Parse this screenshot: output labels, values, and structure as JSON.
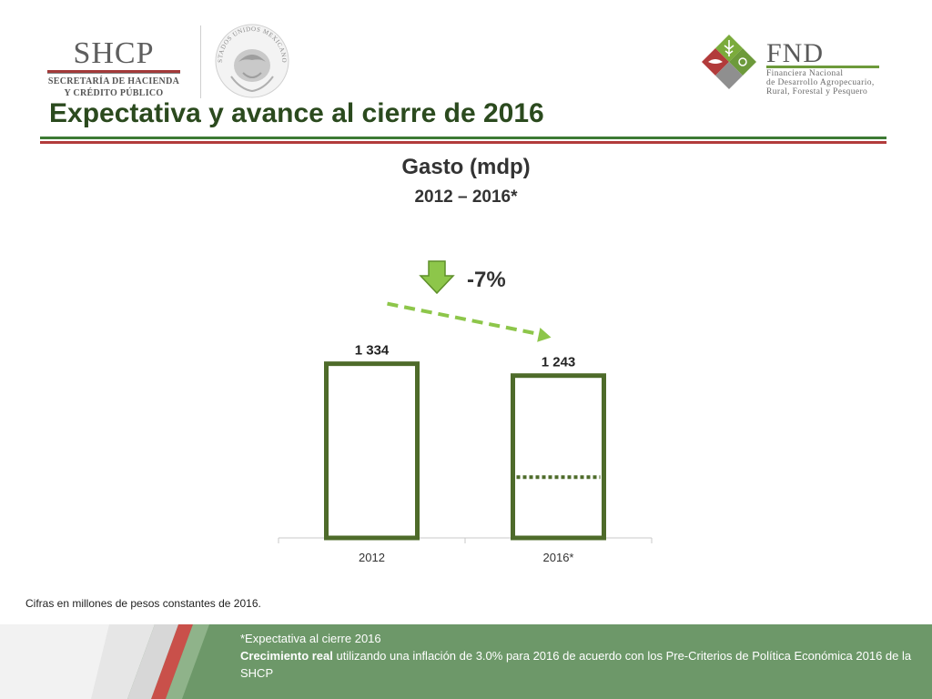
{
  "header": {
    "shcp": {
      "name": "SHCP",
      "line1": "SECRETARÍA DE HACIENDA",
      "line2": "Y CRÉDITO PÚBLICO"
    },
    "seal_text": "ESTADOS UNIDOS MEXICANOS",
    "fnd": {
      "name": "FND",
      "line1": "Financiera Nacional",
      "line2": "de Desarrollo Agropecuario,",
      "line3": "Rural, Forestal y Pesquero"
    }
  },
  "page_title": "Expectativa y avance al cierre de 2016",
  "chart_data": {
    "type": "bar",
    "title": "Gasto (mdp)",
    "subtitle": "2012 – 2016*",
    "categories": [
      "2012",
      "2016*"
    ],
    "values": [
      1334,
      1243
    ],
    "value_labels": [
      "1 334",
      "1 243"
    ],
    "progress_marker": {
      "category": "2016*",
      "value": 465
    },
    "change_annotation": "-7%",
    "ylim": [
      0,
      1450
    ],
    "grid": false,
    "legend": "none",
    "colors": {
      "bar_outline": "#4e6b2a",
      "bar_fill": "#ffffff",
      "arrow": "#8dc64a",
      "arrow_dark": "#5e8f2a",
      "axis": "#c8c8c8"
    }
  },
  "notes": {
    "units": "Cifras en millones de pesos constantes de 2016.",
    "footnote1": "*Expectativa al cierre 2016",
    "footnote2_bold": "Crecimiento real",
    "footnote2_rest": " utilizando una inflación de 3.0% para 2016 de acuerdo con los Pre-Criterios de Política Económica 2016 de la SHCP"
  }
}
